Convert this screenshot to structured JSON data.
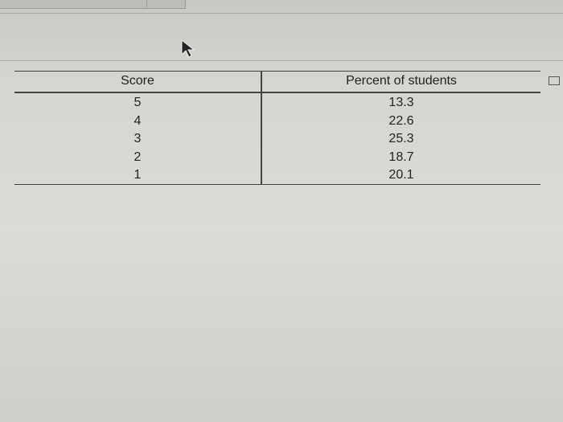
{
  "table": {
    "header": [
      "Score",
      "Percent of students"
    ],
    "rows": [
      [
        5,
        13.3
      ],
      [
        4,
        22.6
      ],
      [
        3,
        25.3
      ],
      [
        2,
        18.7
      ],
      [
        1,
        20.1
      ]
    ]
  }
}
